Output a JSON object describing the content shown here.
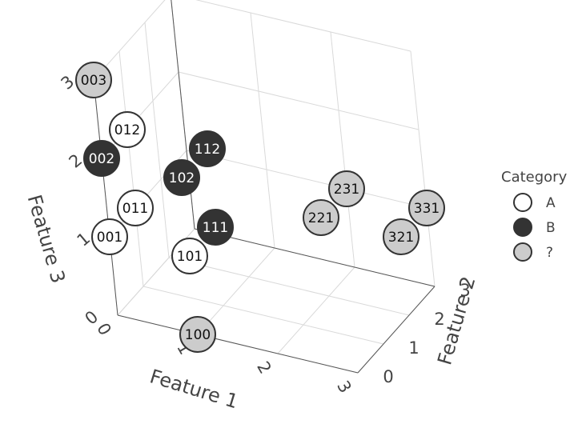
{
  "chart_data": {
    "type": "scatter3d",
    "x_label": "Feature 1",
    "y_label": "Feature 2",
    "z_label": "Feature 3",
    "x_ticks": [
      "0",
      "1",
      "2",
      "3"
    ],
    "y_ticks": [
      "0",
      "1",
      "2",
      "3"
    ],
    "z_ticks": [
      "0",
      "1",
      "2",
      "3"
    ],
    "x_range": [
      0,
      3
    ],
    "y_range": [
      0,
      3
    ],
    "z_range": [
      0,
      3
    ],
    "grid": true,
    "legend": {
      "title": "Category",
      "placement": "right",
      "items": [
        {
          "name": "A",
          "color": "#ffffff"
        },
        {
          "name": "B",
          "color": "#333333"
        },
        {
          "name": "?",
          "color": "#cccccc"
        }
      ]
    },
    "points": [
      {
        "label": "003",
        "x": 0,
        "y": 0,
        "z": 3,
        "category": "?"
      },
      {
        "label": "012",
        "x": 0,
        "y": 1,
        "z": 2,
        "category": "A"
      },
      {
        "label": "002",
        "x": 0,
        "y": 0,
        "z": 2,
        "category": "B"
      },
      {
        "label": "112",
        "x": 1,
        "y": 1,
        "z": 2,
        "category": "B"
      },
      {
        "label": "102",
        "x": 1,
        "y": 0,
        "z": 2,
        "category": "B"
      },
      {
        "label": "011",
        "x": 0,
        "y": 1,
        "z": 1,
        "category": "A"
      },
      {
        "label": "111",
        "x": 1,
        "y": 1,
        "z": 1,
        "category": "B"
      },
      {
        "label": "001",
        "x": 0,
        "y": 0,
        "z": 1,
        "category": "A"
      },
      {
        "label": "101",
        "x": 1,
        "y": 0,
        "z": 1,
        "category": "A"
      },
      {
        "label": "100",
        "x": 1,
        "y": 0,
        "z": 0,
        "category": "?"
      },
      {
        "label": "231",
        "x": 2,
        "y": 3,
        "z": 1,
        "category": "?"
      },
      {
        "label": "221",
        "x": 2,
        "y": 2,
        "z": 1,
        "category": "?"
      },
      {
        "label": "331",
        "x": 3,
        "y": 3,
        "z": 1,
        "category": "?"
      },
      {
        "label": "321",
        "x": 3,
        "y": 2,
        "z": 1,
        "category": "?"
      }
    ]
  }
}
